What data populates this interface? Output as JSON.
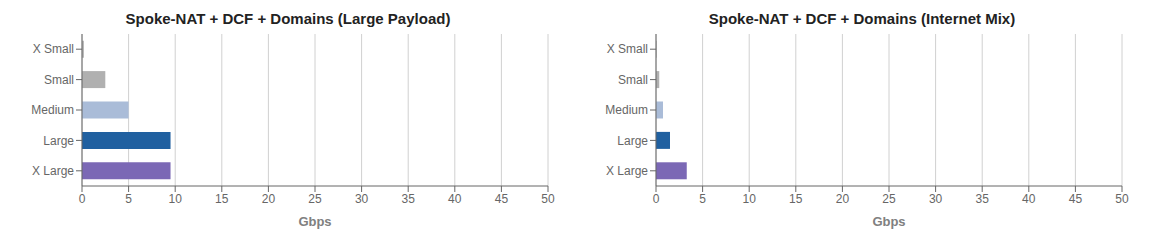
{
  "chart_data": [
    {
      "type": "bar",
      "orientation": "horizontal",
      "title": "Spoke-NAT + DCF + Domains (Large Payload)",
      "categories": [
        "X Small",
        "Small",
        "Medium",
        "Large",
        "X Large"
      ],
      "values": [
        0.2,
        2.5,
        5.0,
        9.5,
        9.5
      ],
      "colors": [
        "#b0b0b0",
        "#b0b0b0",
        "#aabcd8",
        "#2060a0",
        "#7b68b5"
      ],
      "xlabel": "Gbps",
      "xlim": [
        0,
        50
      ],
      "xticks": [
        0,
        5,
        10,
        15,
        20,
        25,
        30,
        35,
        40,
        45,
        50
      ],
      "grid": true
    },
    {
      "type": "bar",
      "orientation": "horizontal",
      "title": "Spoke-NAT + DCF + Domains (Internet Mix)",
      "categories": [
        "X Small",
        "Small",
        "Medium",
        "Large",
        "X Large"
      ],
      "values": [
        0.07,
        0.35,
        0.75,
        1.5,
        3.3
      ],
      "colors": [
        "#b0b0b0",
        "#b0b0b0",
        "#aabcd8",
        "#2060a0",
        "#7b68b5"
      ],
      "xlabel": "Gbps",
      "xlim": [
        0,
        50
      ],
      "xticks": [
        0,
        5,
        10,
        15,
        20,
        25,
        30,
        35,
        40,
        45,
        50
      ],
      "grid": true
    }
  ]
}
